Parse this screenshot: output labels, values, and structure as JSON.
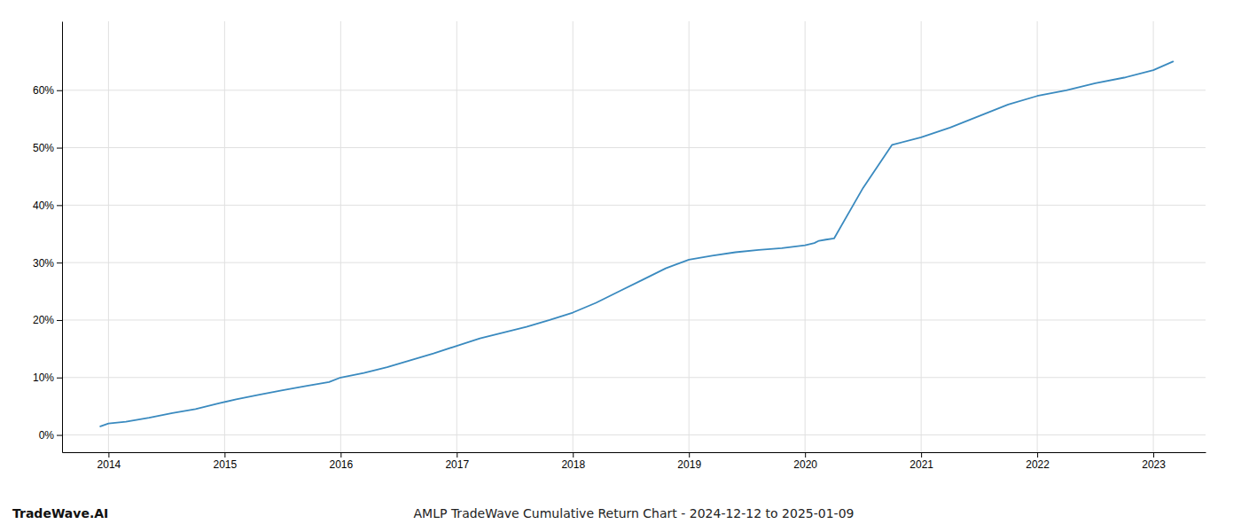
{
  "chart_data": {
    "type": "line",
    "title": "AMLP TradeWave Cumulative Return Chart - 2024-12-12 to 2025-01-09",
    "annotations": [
      "TradeWave.AI"
    ],
    "color": "#3a8abf",
    "grid": true,
    "x": [
      2013.93,
      2014.0,
      2014.15,
      2014.35,
      2014.55,
      2014.75,
      2014.95,
      2015.1,
      2015.3,
      2015.5,
      2015.7,
      2015.9,
      2016.0,
      2016.2,
      2016.4,
      2016.6,
      2016.8,
      2017.0,
      2017.2,
      2017.4,
      2017.6,
      2017.8,
      2018.0,
      2018.2,
      2018.4,
      2018.6,
      2018.8,
      2019.0,
      2019.2,
      2019.4,
      2019.6,
      2019.8,
      2020.0,
      2020.08,
      2020.12,
      2020.18,
      2020.25,
      2020.5,
      2020.75,
      2021.0,
      2021.25,
      2021.5,
      2021.75,
      2022.0,
      2022.25,
      2022.5,
      2022.75,
      2023.0,
      2023.17
    ],
    "values": [
      1.5,
      2.0,
      2.3,
      3.0,
      3.8,
      4.5,
      5.5,
      6.2,
      7.0,
      7.8,
      8.5,
      9.2,
      10.0,
      10.8,
      11.8,
      13.0,
      14.2,
      15.5,
      16.8,
      17.8,
      18.8,
      20.0,
      21.3,
      23.0,
      25.0,
      27.0,
      29.0,
      30.5,
      31.2,
      31.8,
      32.2,
      32.5,
      33.0,
      33.4,
      33.8,
      34.0,
      34.2,
      43.0,
      50.5,
      51.8,
      53.5,
      55.5,
      57.5,
      59.0,
      60.0,
      61.2,
      62.2,
      63.5,
      65.0
    ],
    "xlim": [
      2013.6,
      2023.45
    ],
    "xticks": [
      2014,
      2015,
      2016,
      2017,
      2018,
      2019,
      2020,
      2021,
      2022,
      2023
    ],
    "ylim": [
      -3,
      72
    ],
    "yticks": [
      {
        "value": 0,
        "label": "0%"
      },
      {
        "value": 10,
        "label": "10%"
      },
      {
        "value": 20,
        "label": "20%"
      },
      {
        "value": 30,
        "label": "30%"
      },
      {
        "value": 40,
        "label": "40%"
      },
      {
        "value": 50,
        "label": "50%"
      },
      {
        "value": 60,
        "label": "60%"
      }
    ]
  }
}
